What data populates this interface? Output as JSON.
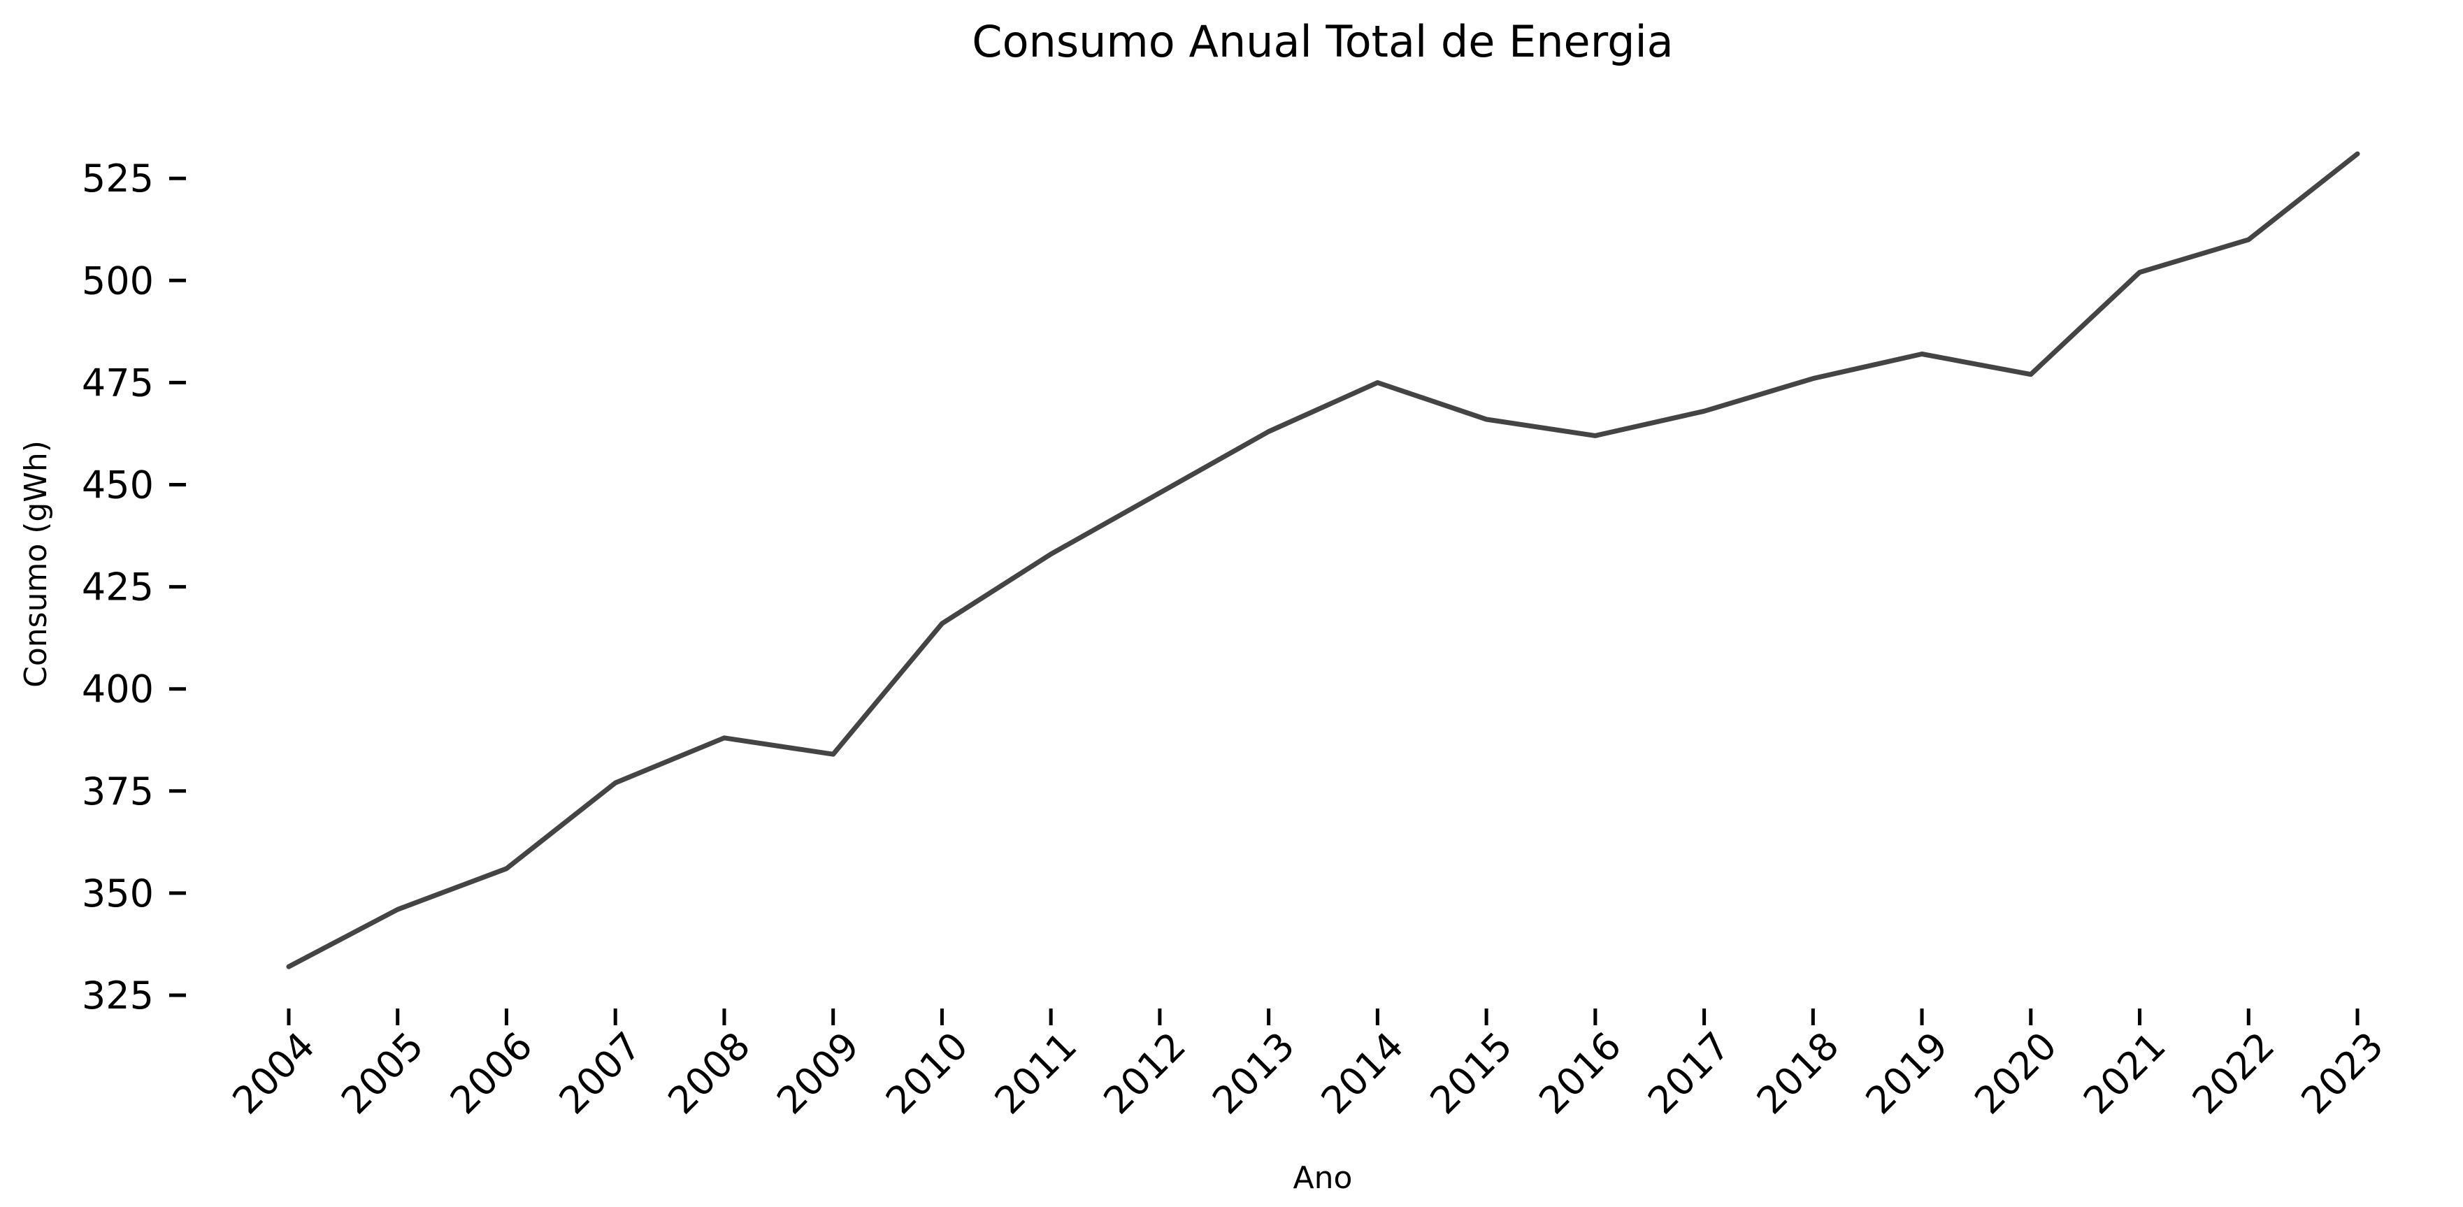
{
  "chart_data": {
    "type": "line",
    "title": "Consumo Anual Total de Energia",
    "xlabel": "Ano",
    "ylabel": "Consumo (gWh)",
    "x": [
      "2004",
      "2005",
      "2006",
      "2007",
      "2008",
      "2009",
      "2010",
      "2011",
      "2012",
      "2013",
      "2014",
      "2015",
      "2016",
      "2017",
      "2018",
      "2019",
      "2020",
      "2021",
      "2022",
      "2023"
    ],
    "series": [
      {
        "values": [
          332,
          346,
          356,
          377,
          388,
          384,
          416,
          433,
          448,
          463,
          475,
          466,
          462,
          468,
          476,
          482,
          477,
          502,
          510,
          531
        ],
        "color": "#444444"
      }
    ],
    "yticks": [
      325,
      350,
      375,
      400,
      425,
      450,
      475,
      500,
      525
    ],
    "ylim": [
      325,
      531
    ],
    "grid": false,
    "legend": "none"
  }
}
